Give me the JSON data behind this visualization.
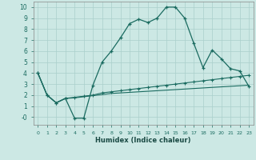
{
  "xlabel": "Humidex (Indice chaleur)",
  "bg_color": "#cce8e4",
  "grid_color": "#aacfcb",
  "line_color": "#1a6b60",
  "xlim": [
    -0.5,
    23.5
  ],
  "ylim": [
    -0.7,
    10.5
  ],
  "xticks": [
    0,
    1,
    2,
    3,
    4,
    5,
    6,
    7,
    8,
    9,
    10,
    11,
    12,
    13,
    14,
    15,
    16,
    17,
    18,
    19,
    20,
    21,
    22,
    23
  ],
  "yticks": [
    0,
    1,
    2,
    3,
    4,
    5,
    6,
    7,
    8,
    9,
    10
  ],
  "ytick_labels": [
    "-0",
    "1",
    "2",
    "3",
    "4",
    "5",
    "6",
    "7",
    "8",
    "9",
    "10"
  ],
  "line1_x": [
    0,
    1,
    2,
    3,
    4,
    5,
    6,
    7,
    8,
    9,
    10,
    11,
    12,
    13,
    14,
    15,
    16,
    17,
    18,
    19,
    20,
    21,
    22,
    23
  ],
  "line1_y": [
    4.0,
    2.0,
    1.3,
    1.7,
    -0.1,
    -0.1,
    2.9,
    5.0,
    6.0,
    7.2,
    8.5,
    8.9,
    8.6,
    9.0,
    10.0,
    10.0,
    9.0,
    6.7,
    4.5,
    6.1,
    5.3,
    4.4,
    4.2,
    2.8
  ],
  "line2_x": [
    0,
    1,
    2,
    3,
    4,
    5,
    6,
    7,
    8,
    9,
    10,
    11,
    12,
    13,
    14,
    15,
    16,
    17,
    18,
    19,
    20,
    21,
    22,
    23
  ],
  "line2_y": [
    4.0,
    2.0,
    1.3,
    1.7,
    1.8,
    1.9,
    2.0,
    2.2,
    2.3,
    2.4,
    2.5,
    2.6,
    2.7,
    2.8,
    2.9,
    3.0,
    3.1,
    3.2,
    3.3,
    3.4,
    3.5,
    3.6,
    3.7,
    3.8
  ],
  "line3_x": [
    0,
    1,
    2,
    3,
    4,
    5,
    6,
    7,
    8,
    9,
    10,
    11,
    12,
    13,
    14,
    15,
    16,
    17,
    18,
    19,
    20,
    21,
    22,
    23
  ],
  "line3_y": [
    4.0,
    2.0,
    1.3,
    1.7,
    1.75,
    1.85,
    1.95,
    2.05,
    2.15,
    2.2,
    2.25,
    2.3,
    2.35,
    2.4,
    2.45,
    2.5,
    2.55,
    2.6,
    2.65,
    2.7,
    2.75,
    2.8,
    2.85,
    2.9
  ]
}
